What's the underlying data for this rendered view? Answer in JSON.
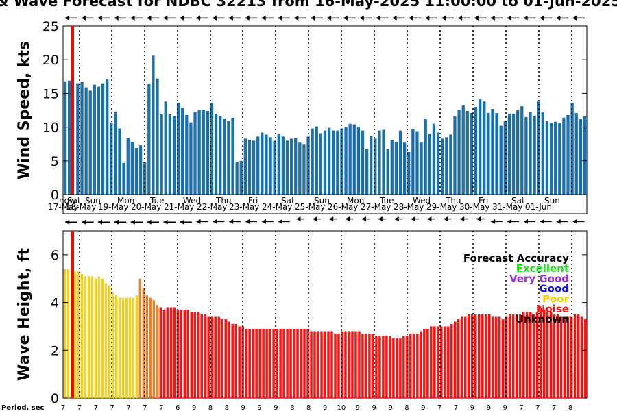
{
  "title": "& Wave Forecast for NDBC 32213 from 16-May-2025 11:00:00 to 01-Jun-2025",
  "now_label": "now",
  "period_label": "Period, sec",
  "accuracy": {
    "title": "Forecast Accuracy",
    "items": [
      {
        "label": "Excellent",
        "color": "#22dd22"
      },
      {
        "label": "Very Good",
        "color": "#9933dd"
      },
      {
        "label": "Good",
        "color": "#1111dd"
      },
      {
        "label": "Poor",
        "color": "#ffcc00"
      },
      {
        "label": "Noise",
        "color": "#ff1111"
      },
      {
        "label": "Unknown",
        "color": "#000000"
      }
    ]
  },
  "days": [
    {
      "name": "Sat",
      "date": "17-May"
    },
    {
      "name": "Sun",
      "date": "18-May"
    },
    {
      "name": "Mon",
      "date": "19-May"
    },
    {
      "name": "Tue",
      "date": "20-May"
    },
    {
      "name": "Wed",
      "date": "21-May"
    },
    {
      "name": "Thu",
      "date": "22-May"
    },
    {
      "name": "Fri",
      "date": "23-May"
    },
    {
      "name": "Sat",
      "date": "24-May"
    },
    {
      "name": "Sun",
      "date": "25-May"
    },
    {
      "name": "Mon",
      "date": "26-May"
    },
    {
      "name": "Tue",
      "date": "27-May"
    },
    {
      "name": "Wed",
      "date": "28-May"
    },
    {
      "name": "Thu",
      "date": "29-May"
    },
    {
      "name": "Fri",
      "date": "30-May"
    },
    {
      "name": "Sat",
      "date": "31-May"
    },
    {
      "name": "Sun",
      "date": "01-Jun"
    }
  ],
  "periods": [
    "7",
    "7",
    "7",
    "7",
    "7",
    "7",
    "7",
    "6",
    "9",
    "8",
    "8",
    "9",
    "9",
    "9",
    "8",
    "8",
    "9",
    "10",
    "9",
    "9",
    "9",
    "8",
    "9",
    "7",
    "7",
    "9",
    "9",
    "9",
    "7",
    "7",
    "7",
    "8"
  ],
  "colors": {
    "wind_bar": "#1a6fad",
    "now_line": "#ff0000",
    "poor": "#f0d020",
    "transition": "#f08020",
    "noise": "#ff1111"
  },
  "chart_data": [
    {
      "type": "bar",
      "name": "wind",
      "ylabel": "Wind Speed, kts",
      "ylim": [
        0,
        25
      ],
      "yticks": [
        0,
        5,
        10,
        15,
        20,
        25
      ],
      "grid": false,
      "values": [
        16.8,
        16.9,
        null,
        16.5,
        16.7,
        15.9,
        15.4,
        16.3,
        16.0,
        16.5,
        17.1,
        10.7,
        12.3,
        9.8,
        4.7,
        8.4,
        7.8,
        6.9,
        7.3,
        4.8,
        16.4,
        20.6,
        17.2,
        12.0,
        13.8,
        11.9,
        11.6,
        13.6,
        12.9,
        11.8,
        10.7,
        12.3,
        12.5,
        12.6,
        12.4,
        13.6,
        12.0,
        11.6,
        11.3,
        10.9,
        11.4,
        4.8,
        5.0,
        8.3,
        8.1,
        8.0,
        8.6,
        9.2,
        8.9,
        8.5,
        8.0,
        9.0,
        8.6,
        8.0,
        8.3,
        8.4,
        7.7,
        7.5,
        8.6,
        9.8,
        10.1,
        9.1,
        9.5,
        9.9,
        9.5,
        9.5,
        9.8,
        10.0,
        10.5,
        10.4,
        10.0,
        9.5,
        6.8,
        8.7,
        8.3,
        9.5,
        9.6,
        6.8,
        8.1,
        7.8,
        9.5,
        7.7,
        6.3,
        9.7,
        9.4,
        7.7,
        11.2,
        9.0,
        10.5,
        9.2,
        8.3,
        8.5,
        8.9,
        11.6,
        12.6,
        13.2,
        12.4,
        12.1,
        13.0,
        14.2,
        13.8,
        12.1,
        12.7,
        12.1,
        10.2,
        10.9,
        12.0,
        12.0,
        12.5,
        13.1,
        11.5,
        12.2,
        11.7,
        13.8,
        12.2,
        10.9,
        10.6,
        10.8,
        10.6,
        11.4,
        11.8,
        13.6,
        12.1,
        11.2,
        11.6
      ]
    },
    {
      "type": "bar",
      "name": "waves",
      "ylabel": "Wave Height, ft",
      "ylim": [
        0,
        7
      ],
      "yticks": [
        0,
        2,
        4,
        6
      ],
      "grid": false,
      "values": [
        5.4,
        5.4,
        null,
        5.3,
        5.3,
        5.2,
        5.1,
        5.1,
        5.1,
        5.0,
        5.1,
        5.0,
        4.8,
        4.7,
        4.4,
        4.3,
        4.2,
        4.2,
        4.2,
        4.2,
        4.2,
        4.3,
        5.0,
        4.6,
        4.3,
        4.2,
        4.1,
        3.9,
        3.8,
        3.7,
        3.8,
        3.8,
        3.8,
        3.7,
        3.7,
        3.7,
        3.7,
        3.6,
        3.6,
        3.6,
        3.5,
        3.5,
        3.4,
        3.4,
        3.4,
        3.4,
        3.3,
        3.3,
        3.2,
        3.1,
        3.1,
        3.0,
        3.0,
        2.9,
        2.9,
        2.9,
        2.9,
        2.9,
        2.9,
        2.9,
        2.9,
        2.9,
        2.9,
        2.9,
        2.9,
        2.9,
        2.9,
        2.9,
        2.9,
        2.9,
        2.9,
        2.9,
        2.8,
        2.8,
        2.8,
        2.8,
        2.8,
        2.8,
        2.8,
        2.7,
        2.7,
        2.8,
        2.8,
        2.8,
        2.8,
        2.8,
        2.8,
        2.7,
        2.7,
        2.7,
        2.7,
        2.6,
        2.6,
        2.6,
        2.6,
        2.6,
        2.5,
        2.5,
        2.5,
        2.6,
        2.6,
        2.7,
        2.7,
        2.7,
        2.8,
        2.9,
        2.9,
        3.0,
        3.0,
        3.0,
        3.0,
        3.0,
        3.0,
        3.1,
        3.2,
        3.3,
        3.4,
        3.4,
        3.5,
        3.5,
        3.5,
        3.5,
        3.5,
        3.5,
        3.5,
        3.4,
        3.4,
        3.4,
        3.3,
        3.4,
        3.5,
        3.5,
        3.5,
        3.5,
        3.6,
        3.6,
        3.6,
        3.5,
        3.6,
        3.7,
        3.7,
        3.6,
        3.6,
        3.5,
        3.5,
        3.4,
        3.4,
        3.4,
        3.4,
        3.5,
        3.5,
        3.4,
        3.3
      ]
    }
  ]
}
